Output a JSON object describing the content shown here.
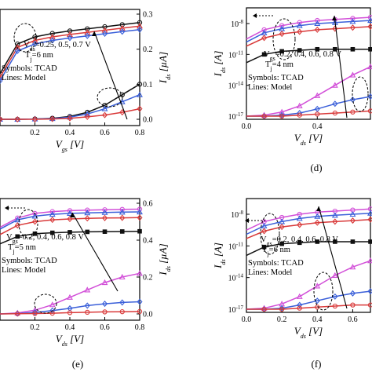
{
  "panels": [
    {
      "id": "a",
      "label": "",
      "x_title": "V",
      "x_sub": "gs",
      "x_unit": " [V]",
      "xlim": [
        0.0,
        0.8
      ],
      "xticks": [
        "0.2",
        "0.4",
        "0.6",
        "0.8"
      ],
      "right_title": "I",
      "right_sub": "ds",
      "right_unit": " [µA]",
      "rticks": [
        "0.0",
        "0.1",
        "0.2",
        "0.3"
      ],
      "annotations": [
        {
          "text": "V",
          "sub": "ds",
          "rest": "=0.25, 0.5, 0.7 V"
        },
        {
          "text": "T",
          "sub": "j",
          "rest": "=6 nm"
        },
        {
          "text": "Symbols: TCAD"
        },
        {
          "text": "Lines: Model"
        }
      ]
    },
    {
      "id": "d",
      "label": "(d)",
      "x_title": "V",
      "x_sub": "ds",
      "x_unit": " [V]",
      "xlim": [
        0.0,
        0.7
      ],
      "xticks": [
        "0.0",
        "0.4"
      ],
      "left_title": "I",
      "left_sub": "ds",
      "left_unit": " [A]",
      "lticks": [
        "10",
        "10",
        "10",
        "10"
      ],
      "lexp": [
        "-8",
        "-11",
        "-14",
        "-17"
      ],
      "annotations": [
        {
          "text": "V",
          "sub": "gs",
          "rest": "=0.2, 0.4, 0.6, 0.8 V"
        },
        {
          "text": "T",
          "sub": "j",
          "rest": "=4 nm"
        },
        {
          "text": "Symbols: TCAD"
        },
        {
          "text": "Lines: Model"
        }
      ]
    },
    {
      "id": "e",
      "label": "(e)",
      "x_title": "V",
      "x_sub": "ds",
      "x_unit": " [V]",
      "xlim": [
        0.0,
        0.8
      ],
      "xticks": [
        "0.2",
        "0.4",
        "0.6",
        "0.8"
      ],
      "right_title": "I",
      "right_sub": "ds",
      "right_unit": " [µA]",
      "rticks": [
        "0.0",
        "0.2",
        "0.4",
        "0.6"
      ],
      "annotations": [
        {
          "text": "V",
          "sub": "gs",
          "rest": "=0.2, 0.4, 0.6, 0.8 V"
        },
        {
          "text": "T",
          "sub": "j",
          "rest": "=5 nm"
        },
        {
          "text": "Symbols: TCAD"
        },
        {
          "text": "Lines: Model"
        }
      ]
    },
    {
      "id": "f",
      "label": "(f)",
      "x_title": "V",
      "x_sub": "ds",
      "x_unit": " [V]",
      "xlim": [
        0.0,
        0.7
      ],
      "xticks": [
        "0.0",
        "0.2",
        "0.4",
        "0.6"
      ],
      "left_title": "I",
      "left_sub": "ds",
      "left_unit": " [A]",
      "lticks": [
        "10",
        "10",
        "10",
        "10"
      ],
      "lexp": [
        "-8",
        "-11",
        "-14",
        "-17"
      ],
      "annotations": [
        {
          "text": "V",
          "sub": "gs",
          "rest": "=0.2, 0.4, 0.6, 0.8 V"
        },
        {
          "text": "T",
          "sub": "j",
          "rest": "=6 nm"
        },
        {
          "text": "Symbols: TCAD"
        },
        {
          "text": "Lines: Model"
        }
      ]
    }
  ],
  "colors": {
    "black": "#111111",
    "red": "#d93a3a",
    "blue": "#3a5fd9",
    "magenta": "#d24fd8",
    "grey": "#666666"
  },
  "chart_data": [
    {
      "type": "line",
      "panel": "a",
      "x": [
        0.0,
        0.1,
        0.2,
        0.3,
        0.4,
        0.5,
        0.6,
        0.7,
        0.8
      ],
      "series": [
        {
          "values": [
            0.13,
            0.215,
            0.235,
            0.245,
            0.252,
            0.258,
            0.264,
            0.27,
            0.276
          ],
          "axis": "right-top"
        },
        {
          "values": [
            0.12,
            0.205,
            0.225,
            0.235,
            0.242,
            0.248,
            0.254,
            0.26,
            0.266
          ],
          "axis": "right-top"
        },
        {
          "values": [
            0.11,
            0.195,
            0.215,
            0.225,
            0.232,
            0.238,
            0.244,
            0.25,
            0.256
          ],
          "axis": "right-top"
        },
        {
          "values": [
            0.0,
            0.0,
            0.001,
            0.003,
            0.008,
            0.02,
            0.04,
            0.07,
            0.1
          ],
          "axis": "right-bottom"
        },
        {
          "values": [
            0.0,
            0.0,
            0.001,
            0.002,
            0.006,
            0.015,
            0.03,
            0.05,
            0.07
          ],
          "axis": "right-bottom"
        },
        {
          "values": [
            0.0,
            0.0,
            0.0,
            0.001,
            0.003,
            0.007,
            0.012,
            0.02,
            0.03
          ],
          "axis": "right-bottom"
        }
      ]
    },
    {
      "type": "line",
      "panel": "d",
      "x": [
        0.0,
        0.1,
        0.2,
        0.3,
        0.4,
        0.5,
        0.6,
        0.7
      ],
      "series": [
        {
          "values": [
            -9.5,
            -8.6,
            -8.2,
            -7.9,
            -7.7,
            -7.6,
            -7.5,
            -7.4
          ]
        },
        {
          "values": [
            -9.8,
            -8.9,
            -8.5,
            -8.2,
            -8.0,
            -7.9,
            -7.8,
            -7.7
          ]
        },
        {
          "values": [
            -10.2,
            -9.4,
            -9.0,
            -8.8,
            -8.6,
            -8.5,
            -8.4,
            -8.3
          ]
        },
        {
          "values": [
            -11.8,
            -11.0,
            -10.7,
            -10.6,
            -10.5,
            -10.5,
            -10.5,
            -10.5
          ]
        },
        {
          "values": [
            -17.0,
            -16.9,
            -16.6,
            -16.0,
            -15.0,
            -14.0,
            -13.0,
            -12.2
          ]
        },
        {
          "values": [
            -17.0,
            -17.0,
            -16.9,
            -16.7,
            -16.3,
            -15.8,
            -15.4,
            -15.1
          ]
        },
        {
          "values": [
            -17.0,
            -17.0,
            -17.0,
            -16.9,
            -16.8,
            -16.7,
            -16.6,
            -16.5
          ]
        }
      ]
    },
    {
      "type": "line",
      "panel": "e",
      "x": [
        0.0,
        0.1,
        0.2,
        0.3,
        0.4,
        0.5,
        0.6,
        0.7,
        0.8
      ],
      "series": [
        {
          "values": [
            0.47,
            0.52,
            0.545,
            0.555,
            0.56,
            0.563,
            0.565,
            0.567,
            0.568
          ]
        },
        {
          "values": [
            0.46,
            0.51,
            0.53,
            0.54,
            0.545,
            0.548,
            0.55,
            0.552,
            0.553
          ]
        },
        {
          "values": [
            0.43,
            0.48,
            0.5,
            0.51,
            0.515,
            0.518,
            0.52,
            0.521,
            0.522
          ]
        },
        {
          "values": [
            0.38,
            0.42,
            0.435,
            0.44,
            0.443,
            0.445,
            0.446,
            0.447,
            0.448
          ]
        },
        {
          "values": [
            0.0,
            0.005,
            0.02,
            0.05,
            0.09,
            0.13,
            0.17,
            0.2,
            0.22
          ]
        },
        {
          "values": [
            0.0,
            0.002,
            0.008,
            0.018,
            0.03,
            0.045,
            0.055,
            0.062,
            0.066
          ]
        },
        {
          "values": [
            0.0,
            0.001,
            0.002,
            0.004,
            0.007,
            0.009,
            0.011,
            0.012,
            0.013
          ]
        }
      ]
    },
    {
      "type": "line",
      "panel": "f",
      "x": [
        0.0,
        0.1,
        0.2,
        0.3,
        0.4,
        0.5,
        0.6,
        0.7
      ],
      "series": [
        {
          "values": [
            -9.5,
            -8.7,
            -8.3,
            -8.0,
            -7.8,
            -7.7,
            -7.6,
            -7.5
          ]
        },
        {
          "values": [
            -9.9,
            -9.1,
            -8.7,
            -8.4,
            -8.2,
            -8.1,
            -8.0,
            -7.9
          ]
        },
        {
          "values": [
            -10.3,
            -9.6,
            -9.2,
            -9.0,
            -8.8,
            -8.7,
            -8.6,
            -8.5
          ]
        },
        {
          "values": [
            -11.9,
            -11.1,
            -10.8,
            -10.7,
            -10.6,
            -10.6,
            -10.6,
            -10.6
          ]
        },
        {
          "values": [
            -17.0,
            -16.9,
            -16.5,
            -15.8,
            -14.8,
            -13.8,
            -13.0,
            -12.4
          ]
        },
        {
          "values": [
            -17.0,
            -17.0,
            -16.9,
            -16.6,
            -16.2,
            -15.8,
            -15.5,
            -15.3
          ]
        },
        {
          "values": [
            -17.0,
            -17.0,
            -17.0,
            -16.9,
            -16.8,
            -16.7,
            -16.6,
            -16.6
          ]
        }
      ]
    }
  ]
}
